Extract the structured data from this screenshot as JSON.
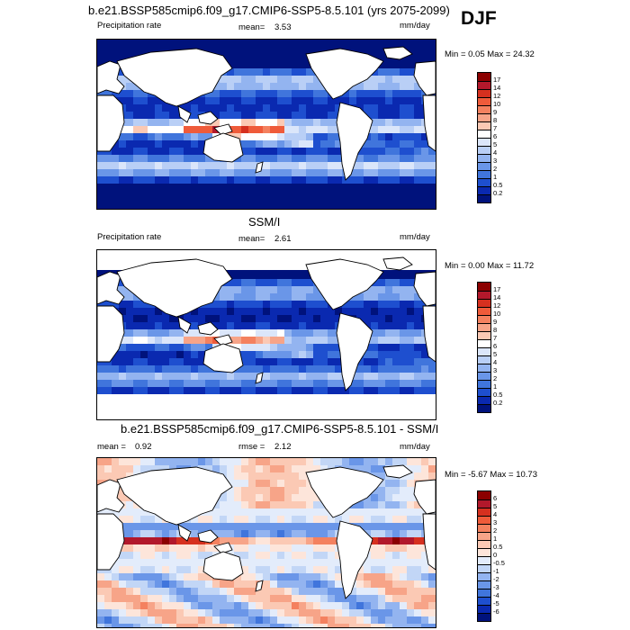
{
  "season": "DJF",
  "panels": [
    {
      "title": "b.e21.BSSP585cmip6.f09_g17.CMIP6-SSP5-8.5.101 (yrs 2075-2099)",
      "left_label": "Precipitation rate",
      "stat_label": "mean=",
      "stat_value": "3.53",
      "stat2_label": "",
      "stat2_value": "",
      "units": "mm/day",
      "minmax": "Min =   0.05 Max =  24.32",
      "colorbar_levels": [
        "17",
        "14",
        "12",
        "10",
        "9",
        "8",
        "7",
        "6",
        "5",
        "4",
        "3",
        "2",
        "1",
        "0.5",
        "0.2"
      ],
      "colorbar_colors": [
        "#8b0000",
        "#b2182b",
        "#d6301f",
        "#ef5b3a",
        "#f4815f",
        "#f7a488",
        "#fbc9b4",
        "#ffffff",
        "#dbe6fa",
        "#b9cff6",
        "#93b4f0",
        "#6a96e8",
        "#4075dc",
        "#1e4fcf",
        "#0a29b0",
        "#00127c"
      ],
      "map_style": "precip"
    },
    {
      "title": "SSM/I",
      "left_label": "Precipitation rate",
      "stat_label": "mean=",
      "stat_value": "2.61",
      "stat2_label": "",
      "stat2_value": "",
      "units": "mm/day",
      "minmax": "Min =   0.00 Max =  11.72",
      "colorbar_levels": [
        "17",
        "14",
        "12",
        "10",
        "9",
        "8",
        "7",
        "6",
        "5",
        "4",
        "3",
        "2",
        "1",
        "0.5",
        "0.2"
      ],
      "colorbar_colors": [
        "#8b0000",
        "#b2182b",
        "#d6301f",
        "#ef5b3a",
        "#f4815f",
        "#f7a488",
        "#fbc9b4",
        "#ffffff",
        "#dbe6fa",
        "#b9cff6",
        "#93b4f0",
        "#6a96e8",
        "#4075dc",
        "#1e4fcf",
        "#0a29b0",
        "#00127c"
      ],
      "map_style": "obs"
    },
    {
      "title": "b.e21.BSSP585cmip6.f09_g17.CMIP6-SSP5-8.5.101 - SSM/I",
      "left_label": "mean =",
      "stat_label": "0.92",
      "stat_value": "",
      "stat2_label": "rmse =",
      "stat2_value": "2.12",
      "units": "mm/day",
      "minmax": "Min =  -5.67 Max =  10.73",
      "colorbar_levels": [
        "6",
        "5",
        "4",
        "3",
        "2",
        "1",
        "0.5",
        "0",
        "-0.5",
        "-1",
        "-2",
        "-3",
        "-4",
        "-5",
        "-6"
      ],
      "colorbar_colors": [
        "#8b0000",
        "#b2182b",
        "#d6301f",
        "#ef5b3a",
        "#f4815f",
        "#f7a488",
        "#fbc9b4",
        "#fde5da",
        "#e3ecfb",
        "#c2d6f6",
        "#93b4f0",
        "#6a96e8",
        "#4075dc",
        "#1e4fcf",
        "#0a29b0",
        "#00127c"
      ],
      "map_style": "diff"
    }
  ]
}
